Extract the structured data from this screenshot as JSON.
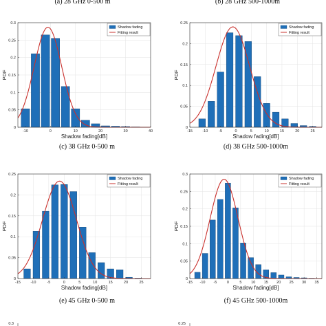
{
  "top_captions": [
    "(a) 28 GHz 0-500 m",
    "(b) 28 GHz 500-1000m"
  ],
  "colors": {
    "bar": "#1f6fb8",
    "bar_edge": "#0d3f70",
    "fit": "#c9302c"
  },
  "chart_data": [
    {
      "type": "bar",
      "caption": "(c) 38 GHz 0-500 m",
      "xlabel": "Shadow fading[dB]",
      "ylabel": "PDF",
      "xlim": [
        -13,
        40
      ],
      "ylim": [
        0,
        0.3
      ],
      "xticks": [
        -10,
        0,
        10,
        20,
        30,
        40
      ],
      "yticks": [
        0,
        0.05,
        0.1,
        0.15,
        0.2,
        0.25,
        0.3
      ],
      "bin_width": 4,
      "legend_position": "top-right",
      "grid": true,
      "series": [
        {
          "name": "Shadow fading",
          "x": [
            -10,
            -6,
            -2,
            2,
            6,
            10,
            14,
            18,
            22,
            26,
            30,
            34
          ],
          "values": [
            0.053,
            0.211,
            0.265,
            0.255,
            0.117,
            0.053,
            0.02,
            0.01,
            0.004,
            0.003,
            0.002,
            0.001
          ]
        },
        {
          "name": "Fitting result",
          "mu": -1,
          "sigma": 5.5,
          "peak": 0.287
        }
      ]
    },
    {
      "type": "bar",
      "caption": "(d) 38 GHz 500-1000m",
      "xlabel": "Shadow fading[dB]",
      "ylabel": "PDF",
      "xlim": [
        -15,
        28
      ],
      "ylim": [
        0,
        0.25
      ],
      "xticks": [
        -15,
        -10,
        -5,
        0,
        5,
        10,
        15,
        20,
        25
      ],
      "yticks": [
        0,
        0.05,
        0.1,
        0.15,
        0.2,
        0.25
      ],
      "bin_width": 2.6,
      "legend_position": "top-right",
      "grid": true,
      "series": [
        {
          "name": "Shadow fading",
          "x": [
            -11,
            -8,
            -5,
            -2,
            1,
            4,
            7,
            10,
            13,
            16,
            19,
            22,
            25
          ],
          "values": [
            0.02,
            0.062,
            0.132,
            0.226,
            0.219,
            0.205,
            0.121,
            0.057,
            0.036,
            0.02,
            0.009,
            0.004,
            0.002
          ]
        },
        {
          "name": "Fitting result",
          "mu": -1,
          "sigma": 5.5,
          "peak": 0.24
        }
      ]
    },
    {
      "type": "bar",
      "caption": "(e) 45 GHz 0-500 m",
      "xlabel": "Shadow fading[dB]",
      "ylabel": "PDF",
      "xlim": [
        -15,
        28
      ],
      "ylim": [
        0,
        0.25
      ],
      "xticks": [
        -15,
        -10,
        -5,
        0,
        5,
        10,
        15,
        20,
        25
      ],
      "yticks": [
        0,
        0.05,
        0.1,
        0.15,
        0.2,
        0.25
      ],
      "bin_width": 2.6,
      "legend_position": "top-right",
      "grid": true,
      "series": [
        {
          "name": "Shadow fading",
          "x": [
            -12,
            -9,
            -6,
            -3,
            0,
            3,
            6,
            9,
            12,
            15,
            18,
            21,
            24
          ],
          "values": [
            0.023,
            0.113,
            0.161,
            0.224,
            0.225,
            0.208,
            0.123,
            0.062,
            0.038,
            0.023,
            0.021,
            0.003,
            0.001
          ]
        },
        {
          "name": "Fitting result",
          "mu": -1.5,
          "sigma": 5.5,
          "peak": 0.233
        }
      ]
    },
    {
      "type": "bar",
      "caption": "(f) 45 GHz 500-1000m",
      "xlabel": "Shadow fading[dB]",
      "ylabel": "PDF",
      "xlim": [
        -15,
        37
      ],
      "ylim": [
        0,
        0.3
      ],
      "xticks": [
        -15,
        -10,
        -5,
        0,
        5,
        10,
        15,
        20,
        25,
        30,
        35
      ],
      "yticks": [
        0,
        0.05,
        0.1,
        0.15,
        0.2,
        0.25,
        0.3
      ],
      "bin_width": 2.6,
      "legend_position": "top-right",
      "grid": true,
      "series": [
        {
          "name": "Shadow fading",
          "x": [
            -12,
            -9,
            -6,
            -3,
            0,
            3,
            6,
            9,
            12,
            15,
            18,
            21,
            24,
            27,
            30,
            33
          ],
          "values": [
            0.018,
            0.072,
            0.168,
            0.227,
            0.274,
            0.203,
            0.102,
            0.06,
            0.04,
            0.025,
            0.017,
            0.01,
            0.005,
            0.003,
            0.002,
            0.001
          ]
        },
        {
          "name": "Fitting result",
          "mu": -1.5,
          "sigma": 5.5,
          "peak": 0.285
        }
      ]
    }
  ],
  "bottom_peek": {
    "left_tick": "0.3",
    "right_tick": "0.25"
  }
}
